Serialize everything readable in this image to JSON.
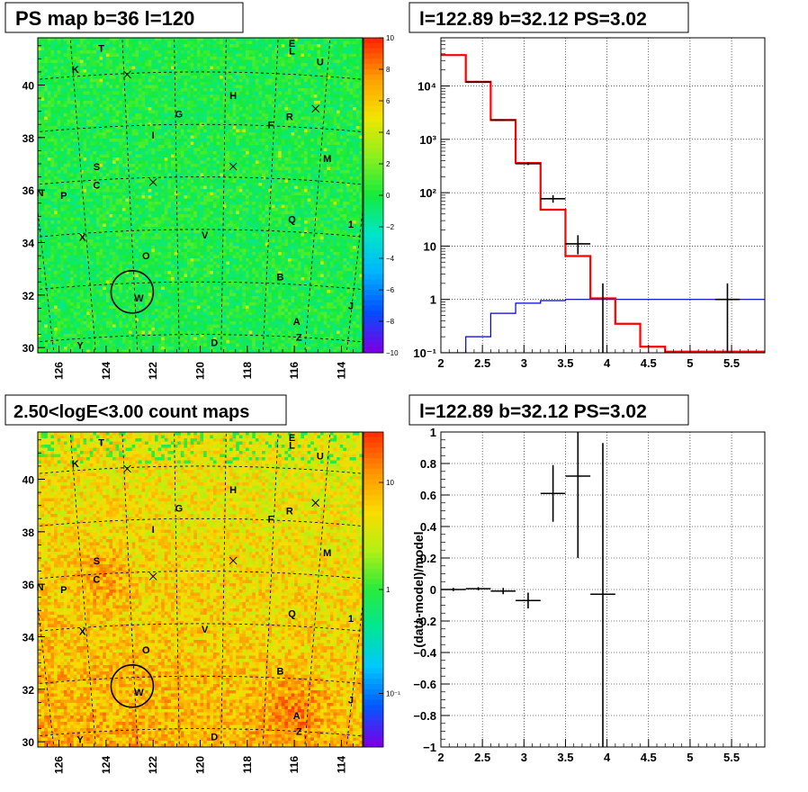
{
  "panels": {
    "map_top_title": "PS map b=36 l=120",
    "spectrum_title": "l=122.89 b=32.12 PS=3.02",
    "map_bottom_title": "2.50<logE<3.00 count maps",
    "residual_title": "l=122.89 b=32.12 PS=3.02"
  },
  "colors": {
    "model_line": "#ff0000",
    "background_line": "#0000cc",
    "data_points": "#000000",
    "ps_map_base": "#22ee44",
    "count_map_base": "#f0a020"
  },
  "maps": {
    "x_ticks": [
      "126",
      "124",
      "122",
      "120",
      "118",
      "116",
      "114"
    ],
    "y_ticks": [
      "30",
      "32",
      "34",
      "36",
      "38",
      "40"
    ],
    "x_range": [
      126.9,
      113.1
    ],
    "y_range": [
      29.8,
      41.8
    ],
    "markers": [
      {
        "label": "T",
        "l": 124.2,
        "b": 41.4
      },
      {
        "label": "E",
        "l": 116.1,
        "b": 41.6
      },
      {
        "label": "L",
        "l": 116.1,
        "b": 41.3
      },
      {
        "label": "U",
        "l": 114.9,
        "b": 40.9
      },
      {
        "label": "K",
        "l": 125.3,
        "b": 40.6
      },
      {
        "label": "H",
        "l": 118.6,
        "b": 39.6
      },
      {
        "label": "G",
        "l": 120.9,
        "b": 38.9
      },
      {
        "label": "R",
        "l": 116.2,
        "b": 38.8
      },
      {
        "label": "F",
        "l": 117.0,
        "b": 38.5
      },
      {
        "label": "I",
        "l": 122.0,
        "b": 38.1
      },
      {
        "label": "M",
        "l": 114.6,
        "b": 37.2
      },
      {
        "label": "S",
        "l": 124.4,
        "b": 36.9
      },
      {
        "label": "C",
        "l": 124.4,
        "b": 36.2
      },
      {
        "label": "N",
        "l": 126.8,
        "b": 35.9
      },
      {
        "label": "P",
        "l": 125.8,
        "b": 35.8
      },
      {
        "label": "Q",
        "l": 116.1,
        "b": 34.9
      },
      {
        "label": "1",
        "l": 113.6,
        "b": 34.7
      },
      {
        "label": "V",
        "l": 119.8,
        "b": 34.3
      },
      {
        "label": "X",
        "l": 125.0,
        "b": 34.2
      },
      {
        "label": "O",
        "l": 122.3,
        "b": 33.5
      },
      {
        "label": "B",
        "l": 116.6,
        "b": 32.7
      },
      {
        "label": "W",
        "l": 122.6,
        "b": 31.9
      },
      {
        "label": "J",
        "l": 113.6,
        "b": 31.6
      },
      {
        "label": "A",
        "l": 115.9,
        "b": 31.0
      },
      {
        "label": "Z",
        "l": 115.8,
        "b": 30.4
      },
      {
        "label": "D",
        "l": 119.4,
        "b": 30.2
      },
      {
        "label": "Y",
        "l": 125.1,
        "b": 30.1
      }
    ],
    "crosses": [
      {
        "l": 123.1,
        "b": 40.4
      },
      {
        "l": 115.1,
        "b": 39.1
      },
      {
        "l": 118.6,
        "b": 36.9
      },
      {
        "l": 122.0,
        "b": 36.3
      }
    ],
    "circle": {
      "l": 122.89,
      "b": 32.12,
      "r": 0.9
    }
  },
  "colorbars": {
    "ps_ticks": [
      "10",
      "8",
      "6",
      "4",
      "2",
      "0",
      "−2",
      "−4",
      "−6",
      "−8",
      "−10"
    ],
    "count_ticks": [
      "10",
      "1",
      "10⁻¹"
    ]
  },
  "chart_data": [
    {
      "type": "line",
      "title": "l=122.89 b=32.12 PS=3.02",
      "xlabel": "",
      "ylabel": "",
      "xlim": [
        2,
        5.9
      ],
      "ylim": [
        0.1,
        80000
      ],
      "log_y": true,
      "grid": true,
      "x_ticks": [
        "2",
        "2.5",
        "3",
        "3.5",
        "4",
        "4.5",
        "5",
        "5.5"
      ],
      "y_ticks": [
        "10⁻¹",
        "1",
        "10",
        "10²",
        "10³",
        "10⁴"
      ],
      "series": [
        {
          "kind": "step",
          "edges": [
            2.0,
            2.3,
            2.6,
            2.9,
            3.2,
            3.5,
            3.8,
            4.1,
            4.4,
            4.7,
            5.0,
            5.3,
            5.6,
            5.9
          ],
          "values": [
            38000,
            12000,
            2300,
            360,
            48,
            6.5,
            1.05,
            0.35,
            0.13,
            0.105,
            0.105,
            0.105,
            0.105
          ]
        },
        {
          "kind": "step",
          "edges": [
            2.0,
            2.3,
            2.6,
            2.9,
            3.2,
            3.5,
            3.8,
            4.1,
            4.4,
            4.7,
            5.0,
            5.3,
            5.6,
            5.9
          ],
          "values": [
            0.1,
            0.2,
            0.55,
            0.85,
            0.95,
            1.0,
            1.0,
            1.0,
            1.0,
            1.0,
            1.0,
            1.0,
            1.0
          ]
        },
        {
          "kind": "points",
          "points": [
            {
              "x": 2.45,
              "y": 11800,
              "xerr": 0.15,
              "ylo": 11600,
              "yhi": 12000
            },
            {
              "x": 2.75,
              "y": 2300,
              "xerr": 0.15,
              "ylo": 2250,
              "yhi": 2350
            },
            {
              "x": 3.05,
              "y": 350,
              "xerr": 0.15,
              "ylo": 330,
              "yhi": 370
            },
            {
              "x": 3.35,
              "y": 77,
              "xerr": 0.15,
              "ylo": 65,
              "yhi": 90
            },
            {
              "x": 3.65,
              "y": 11,
              "xerr": 0.15,
              "ylo": 7,
              "yhi": 16
            },
            {
              "x": 3.95,
              "y": 1.0,
              "xerr": 0.0,
              "ylo": 0.1,
              "yhi": 2.0
            },
            {
              "x": 5.45,
              "y": 1.0,
              "xerr": 0.15,
              "ylo": 0.1,
              "yhi": 2.0
            }
          ]
        }
      ]
    },
    {
      "type": "scatter",
      "title": "l=122.89 b=32.12 PS=3.02",
      "xlabel": "",
      "ylabel": "(data-model)/model",
      "xlim": [
        2,
        5.9
      ],
      "ylim": [
        -1,
        1
      ],
      "grid": true,
      "x_ticks": [
        "2",
        "2.5",
        "3",
        "3.5",
        "4",
        "4.5",
        "5",
        "5.5"
      ],
      "y_ticks": [
        "−1",
        "−0.8",
        "−0.6",
        "−0.4",
        "−0.2",
        "0",
        "0.2",
        "0.4",
        "0.6",
        "0.8",
        "1"
      ],
      "points": [
        {
          "x": 2.15,
          "y": 0.0,
          "xerr": 0.15,
          "ylo": -0.01,
          "yhi": 0.01
        },
        {
          "x": 2.45,
          "y": 0.005,
          "xerr": 0.15,
          "ylo": -0.005,
          "yhi": 0.015
        },
        {
          "x": 2.75,
          "y": -0.01,
          "xerr": 0.15,
          "ylo": -0.03,
          "yhi": 0.01
        },
        {
          "x": 3.05,
          "y": -0.07,
          "xerr": 0.15,
          "ylo": -0.12,
          "yhi": -0.02
        },
        {
          "x": 3.35,
          "y": 0.61,
          "xerr": 0.15,
          "ylo": 0.43,
          "yhi": 0.79
        },
        {
          "x": 3.65,
          "y": 0.72,
          "xerr": 0.15,
          "ylo": 0.2,
          "yhi": 1.0
        },
        {
          "x": 3.95,
          "y": -0.03,
          "xerr": 0.15,
          "ylo": -1.0,
          "yhi": 0.93
        }
      ]
    }
  ]
}
